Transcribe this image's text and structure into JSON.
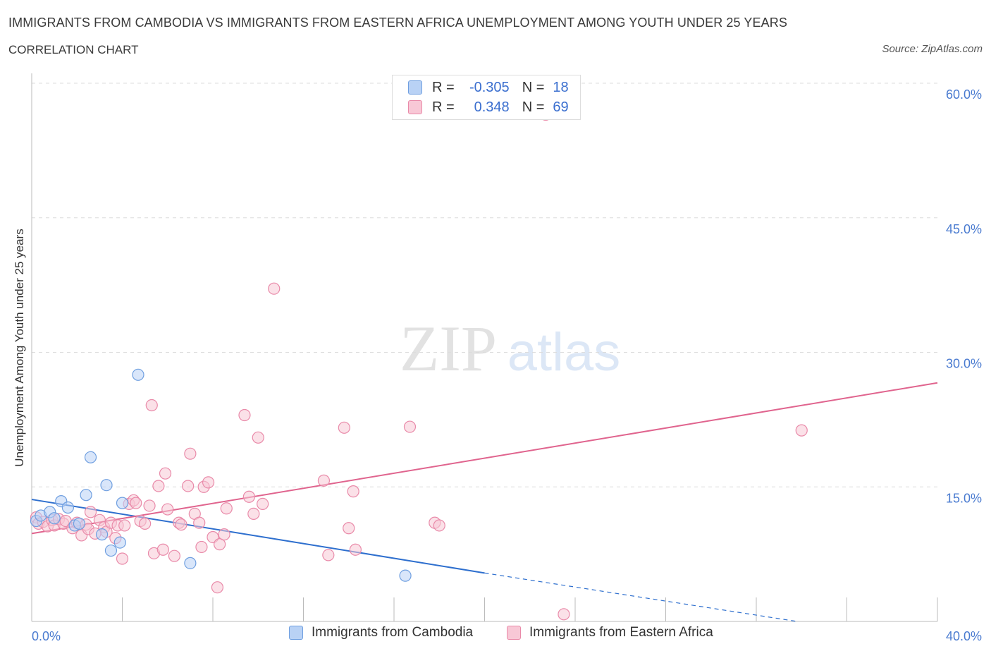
{
  "header": {
    "title": "IMMIGRANTS FROM CAMBODIA VS IMMIGRANTS FROM EASTERN AFRICA UNEMPLOYMENT AMONG YOUTH UNDER 25 YEARS",
    "subtitle": "CORRELATION CHART",
    "source": "Source: ZipAtlas.com"
  },
  "watermark": {
    "zip": "ZIP",
    "atlas": "atlas"
  },
  "stats": {
    "r_label": "R =",
    "n_label": "N =",
    "rows": [
      {
        "r": "-0.305",
        "n": "18"
      },
      {
        "r": "0.348",
        "n": "69"
      }
    ]
  },
  "legend": {
    "items": [
      {
        "label": "Immigrants from Cambodia"
      },
      {
        "label": "Immigrants from Eastern Africa"
      }
    ]
  },
  "colors": {
    "cambodia_fill": "#b9d2f5",
    "cambodia_stroke": "#6f9fe0",
    "cambodia_line": "#2e6fce",
    "africa_fill": "#f8c8d6",
    "africa_stroke": "#e98aa9",
    "africa_line": "#e0648e",
    "axis_text": "#4a7bd0",
    "grid": "#dcdcdc"
  },
  "chart_data": {
    "type": "scatter",
    "ylabel": "Unemployment Among Youth under 25 years",
    "xlim": [
      0,
      40
    ],
    "ylim": [
      0,
      60
    ],
    "x_tick_labels": [
      {
        "value": 0,
        "label": "0.0%"
      },
      {
        "value": 40,
        "label": "40.0%"
      }
    ],
    "y_tick_labels": [
      {
        "value": 15,
        "label": "15.0%"
      },
      {
        "value": 30,
        "label": "30.0%"
      },
      {
        "value": 45,
        "label": "45.0%"
      },
      {
        "value": 60,
        "label": "60.0%"
      }
    ],
    "series": [
      {
        "name": "Immigrants from Cambodia",
        "points": [
          [
            0.2,
            11.2
          ],
          [
            0.4,
            11.8
          ],
          [
            0.8,
            12.2
          ],
          [
            1.0,
            11.5
          ],
          [
            1.3,
            13.4
          ],
          [
            1.6,
            12.7
          ],
          [
            1.9,
            10.7
          ],
          [
            2.1,
            10.9
          ],
          [
            2.4,
            14.1
          ],
          [
            2.6,
            18.3
          ],
          [
            3.1,
            9.7
          ],
          [
            3.3,
            15.2
          ],
          [
            3.5,
            7.9
          ],
          [
            3.9,
            8.8
          ],
          [
            4.0,
            13.2
          ],
          [
            4.7,
            27.5
          ],
          [
            7.0,
            6.5
          ],
          [
            16.5,
            5.1
          ]
        ],
        "trend": {
          "x0": 0,
          "y0": 13.6,
          "x1": 20,
          "y1": 5.4,
          "dash_to_x": 33.8,
          "dash_to_y": 0
        }
      },
      {
        "name": "Immigrants from Eastern Africa",
        "points": [
          [
            0.2,
            11.6
          ],
          [
            0.3,
            10.9
          ],
          [
            0.5,
            11.1
          ],
          [
            0.7,
            10.6
          ],
          [
            0.9,
            11.3
          ],
          [
            1.0,
            10.7
          ],
          [
            1.2,
            11.4
          ],
          [
            1.4,
            10.9
          ],
          [
            1.5,
            11.2
          ],
          [
            1.8,
            10.4
          ],
          [
            2.0,
            11.0
          ],
          [
            2.2,
            9.6
          ],
          [
            2.4,
            10.8
          ],
          [
            2.5,
            10.3
          ],
          [
            2.6,
            12.2
          ],
          [
            2.8,
            9.8
          ],
          [
            3.0,
            11.3
          ],
          [
            3.2,
            10.5
          ],
          [
            3.3,
            10.0
          ],
          [
            3.5,
            11.0
          ],
          [
            3.7,
            9.3
          ],
          [
            3.8,
            10.7
          ],
          [
            4.0,
            7.0
          ],
          [
            4.1,
            10.7
          ],
          [
            4.3,
            13.1
          ],
          [
            4.5,
            13.5
          ],
          [
            4.6,
            13.2
          ],
          [
            4.8,
            11.2
          ],
          [
            5.0,
            10.9
          ],
          [
            5.2,
            12.9
          ],
          [
            5.3,
            24.1
          ],
          [
            5.4,
            7.6
          ],
          [
            5.6,
            15.1
          ],
          [
            5.8,
            8.0
          ],
          [
            5.9,
            16.5
          ],
          [
            6.0,
            12.5
          ],
          [
            6.3,
            7.3
          ],
          [
            6.5,
            11.0
          ],
          [
            6.6,
            10.8
          ],
          [
            6.9,
            15.1
          ],
          [
            7.0,
            18.7
          ],
          [
            7.2,
            12.0
          ],
          [
            7.4,
            11.0
          ],
          [
            7.5,
            8.3
          ],
          [
            7.6,
            15.0
          ],
          [
            7.8,
            15.5
          ],
          [
            8.0,
            9.4
          ],
          [
            8.2,
            3.8
          ],
          [
            8.3,
            8.6
          ],
          [
            8.5,
            9.7
          ],
          [
            8.6,
            12.6
          ],
          [
            9.4,
            23.0
          ],
          [
            9.6,
            13.9
          ],
          [
            9.8,
            12.0
          ],
          [
            10.0,
            20.5
          ],
          [
            10.2,
            13.1
          ],
          [
            10.7,
            37.1
          ],
          [
            12.9,
            15.7
          ],
          [
            13.1,
            7.4
          ],
          [
            13.8,
            21.6
          ],
          [
            14.0,
            10.4
          ],
          [
            14.2,
            14.5
          ],
          [
            14.3,
            8.0
          ],
          [
            16.7,
            21.7
          ],
          [
            17.8,
            11.0
          ],
          [
            18.0,
            10.7
          ],
          [
            22.7,
            56.5
          ],
          [
            23.5,
            0.8
          ],
          [
            34.0,
            21.3
          ]
        ],
        "trend": {
          "x0": 0,
          "y0": 9.8,
          "x1": 40,
          "y1": 26.6
        }
      }
    ]
  }
}
